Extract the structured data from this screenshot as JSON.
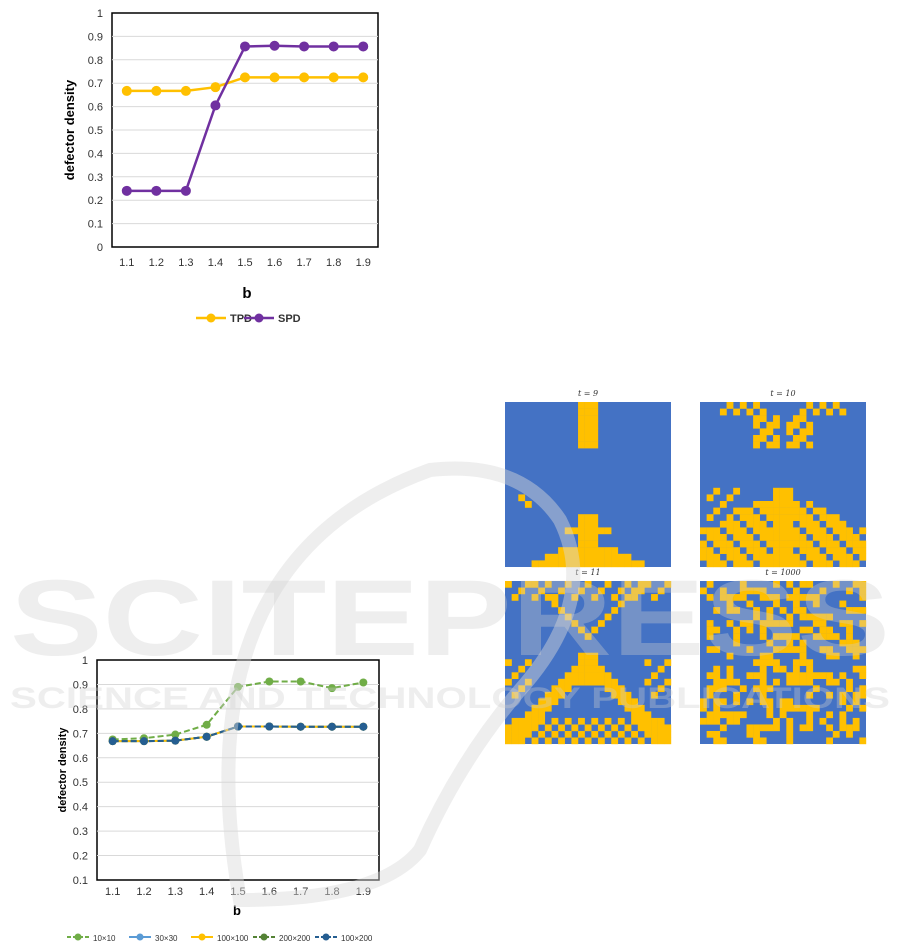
{
  "chart_data": [
    {
      "type": "line",
      "x": [
        "1.1",
        "1.2",
        "1.3",
        "1.4",
        "1.5",
        "1.6",
        "1.7",
        "1.8",
        "1.9"
      ],
      "xlabel": "b",
      "ylabel": "defector density",
      "ylim": [
        0,
        1
      ],
      "yticks": [
        "0",
        "0.1",
        "0.2",
        "0.3",
        "0.4",
        "0.5",
        "0.6",
        "0.7",
        "0.8",
        "0.9",
        "1"
      ],
      "grid": true,
      "legend": "bottom",
      "series": [
        {
          "name": "TPD",
          "color": "#FFC000",
          "dashed": false,
          "values": [
            0.667,
            0.667,
            0.667,
            0.683,
            0.725,
            0.725,
            0.725,
            0.725,
            0.725
          ]
        },
        {
          "name": "SPD",
          "color": "#7030A0",
          "dashed": false,
          "values": [
            0.24,
            0.24,
            0.24,
            0.605,
            0.857,
            0.86,
            0.857,
            0.857,
            0.857
          ]
        }
      ]
    },
    {
      "type": "line",
      "x": [
        "1.1",
        "1.2",
        "1.3",
        "1.4",
        "1.5",
        "1.6",
        "1.7",
        "1.8",
        "1.9"
      ],
      "xlabel": "b",
      "ylabel": "defector density",
      "ylim": [
        0.1,
        1
      ],
      "yticks": [
        "0.1",
        "0.2",
        "0.3",
        "0.4",
        "0.5",
        "0.6",
        "0.7",
        "0.8",
        "0.9",
        "1"
      ],
      "grid": true,
      "legend": "bottom",
      "series": [
        {
          "name": "10×10",
          "color": "#70AD47",
          "dashed": true,
          "values": [
            0.675,
            0.68,
            0.695,
            0.735,
            0.89,
            0.912,
            0.912,
            0.885,
            0.908
          ]
        },
        {
          "name": "30×30",
          "color": "#5B9BD5",
          "dashed": false,
          "values": [
            0.668,
            0.668,
            0.67,
            0.686,
            0.728,
            0.728,
            0.727,
            0.727,
            0.727
          ]
        },
        {
          "name": "100×100",
          "color": "#FFC000",
          "dashed": false,
          "values": [
            0.668,
            0.668,
            0.67,
            0.686,
            0.728,
            0.728,
            0.727,
            0.727,
            0.727
          ]
        },
        {
          "name": "200×200",
          "color": "#548235",
          "dashed": true,
          "values": [
            0.668,
            0.668,
            0.67,
            0.686,
            0.728,
            0.728,
            0.727,
            0.727,
            0.727
          ]
        },
        {
          "name": "100×200",
          "color": "#255E91",
          "dashed": true,
          "values": [
            0.668,
            0.668,
            0.67,
            0.686,
            0.728,
            0.728,
            0.727,
            0.727,
            0.727
          ]
        }
      ]
    }
  ],
  "lattices": {
    "colors": {
      "cooperator": "#4472C4",
      "defector": "#FFC000"
    },
    "panels": [
      {
        "title": "t = 9"
      },
      {
        "title": "t = 10"
      },
      {
        "title": "t = 11"
      },
      {
        "title": "t = 1000"
      }
    ]
  },
  "watermark": {
    "main": "SCITEPRESS",
    "sub": "SCIENCE AND TECHNOLOGY PUBLICATIONS"
  }
}
